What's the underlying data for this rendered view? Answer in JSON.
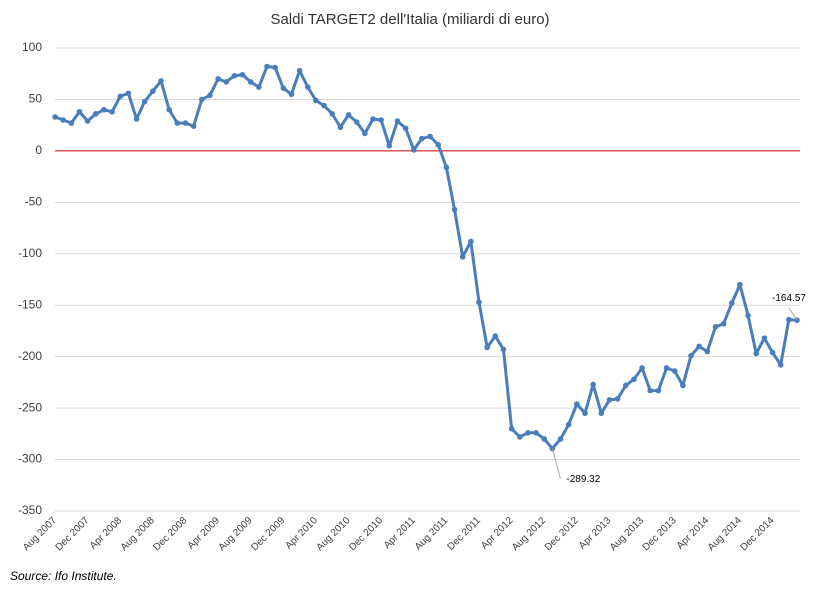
{
  "chart_data": {
    "type": "line",
    "title": "Saldi TARGET2 dell'Italia (miliardi di euro)",
    "categories": [
      "Aug 2007",
      null,
      null,
      null,
      "Dec 2007",
      null,
      null,
      null,
      "Apr 2008",
      null,
      null,
      null,
      "Aug 2008",
      null,
      null,
      null,
      "Dec 2008",
      null,
      null,
      null,
      "Apr 2009",
      null,
      null,
      null,
      "Aug 2009",
      null,
      null,
      null,
      "Dec 2009",
      null,
      null,
      null,
      "Apr 2010",
      null,
      null,
      null,
      "Aug 2010",
      null,
      null,
      null,
      "Dec 2010",
      null,
      null,
      null,
      "Apr 2011",
      null,
      null,
      null,
      "Aug 2011",
      null,
      null,
      null,
      "Dec 2011",
      null,
      null,
      null,
      "Apr 2012",
      null,
      null,
      null,
      "Aug 2012",
      null,
      null,
      null,
      "Dec 2012",
      null,
      null,
      null,
      "Apr 2013",
      null,
      null,
      null,
      "Aug 2013",
      null,
      null,
      null,
      "Dec 2013",
      null,
      null,
      null,
      "Apr 2014",
      null,
      null,
      null,
      "Aug 2014",
      null,
      null,
      null,
      "Dec 2014",
      null,
      null,
      null
    ],
    "series": [
      {
        "name": "Saldi TARGET2",
        "color": "#4a7ebb",
        "values": [
          33,
          30,
          27,
          38,
          29,
          36,
          40,
          38,
          53,
          56,
          31,
          48,
          58,
          68,
          40,
          27,
          27,
          24,
          50,
          54,
          70,
          67,
          73,
          74,
          67,
          62,
          82,
          81,
          61,
          55,
          78,
          62,
          49,
          44,
          36,
          23,
          35,
          28,
          17,
          31,
          30,
          5,
          29,
          22,
          1,
          12,
          14,
          6,
          -16,
          -57,
          -103,
          -88,
          -147,
          -191,
          -180,
          -193,
          -270,
          -278,
          -274,
          -274,
          -280,
          -289.32,
          -280,
          -266,
          -246,
          -255,
          -227,
          -255,
          -242,
          -241,
          -228,
          -222,
          -211,
          -233,
          -233,
          -211,
          -214,
          -228,
          -199,
          -190,
          -195,
          -171,
          -168,
          -148,
          -130,
          -160,
          -197,
          -182,
          -196,
          -208,
          -164,
          -164.57
        ]
      }
    ],
    "ylim": [
      -350,
      100
    ],
    "yticks": [
      100,
      50,
      0,
      -50,
      -100,
      -150,
      -200,
      -250,
      -300,
      -350
    ],
    "grid": true,
    "zero_line_color": "#c00000",
    "source": "Source: Ifo Institute."
  }
}
